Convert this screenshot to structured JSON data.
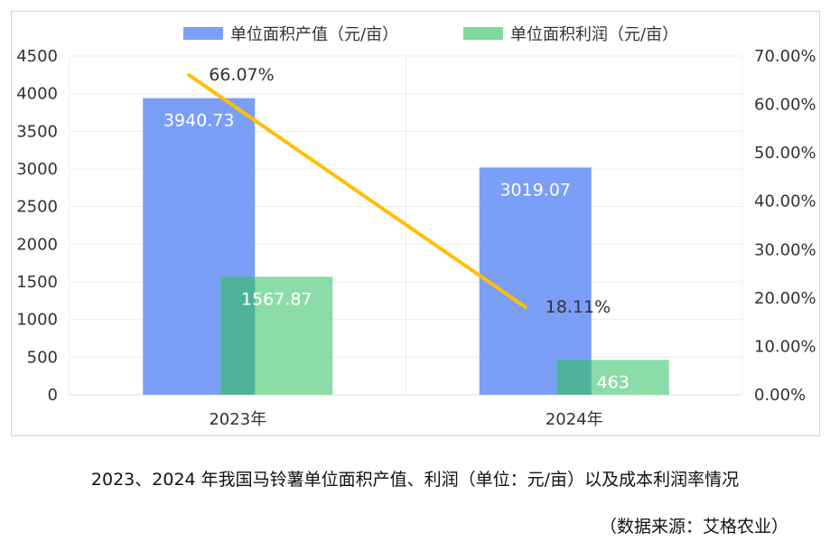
{
  "chart_data": {
    "type": "bar",
    "categories": [
      "2023年",
      "2024年"
    ],
    "series": [
      {
        "name": "单位面积产值（元/亩）",
        "type": "bar",
        "axis": "left",
        "color": "#7B9EF7",
        "values": [
          3940.73,
          3019.07
        ],
        "labels": [
          "3940.73",
          "3019.07"
        ]
      },
      {
        "name": "单位面积利润（元/亩）",
        "type": "bar",
        "axis": "left",
        "color": "#7ED89C",
        "values": [
          1567.87,
          463
        ],
        "labels": [
          "1567.87",
          "463"
        ]
      },
      {
        "name": "",
        "type": "line",
        "axis": "right",
        "color": "#FFC000",
        "values": [
          66.07,
          18.11
        ],
        "labels": [
          "66.07%",
          "18.11%"
        ]
      }
    ],
    "left_axis": {
      "min": 0,
      "max": 4500,
      "ticks": [
        "0",
        "500",
        "1000",
        "1500",
        "2000",
        "2500",
        "3000",
        "3500",
        "4000",
        "4500"
      ]
    },
    "right_axis": {
      "min": 0,
      "max": 70,
      "ticks": [
        "0.00%",
        "10.00%",
        "20.00%",
        "30.00%",
        "40.00%",
        "50.00%",
        "60.00%",
        "70.00%"
      ]
    },
    "grid": true,
    "legend_position": "top"
  },
  "caption": "2023、2024 年我国马铃薯单位面积产值、利润（单位：元/亩）以及成本利润率情况",
  "source": "（数据来源：艾格农业）"
}
